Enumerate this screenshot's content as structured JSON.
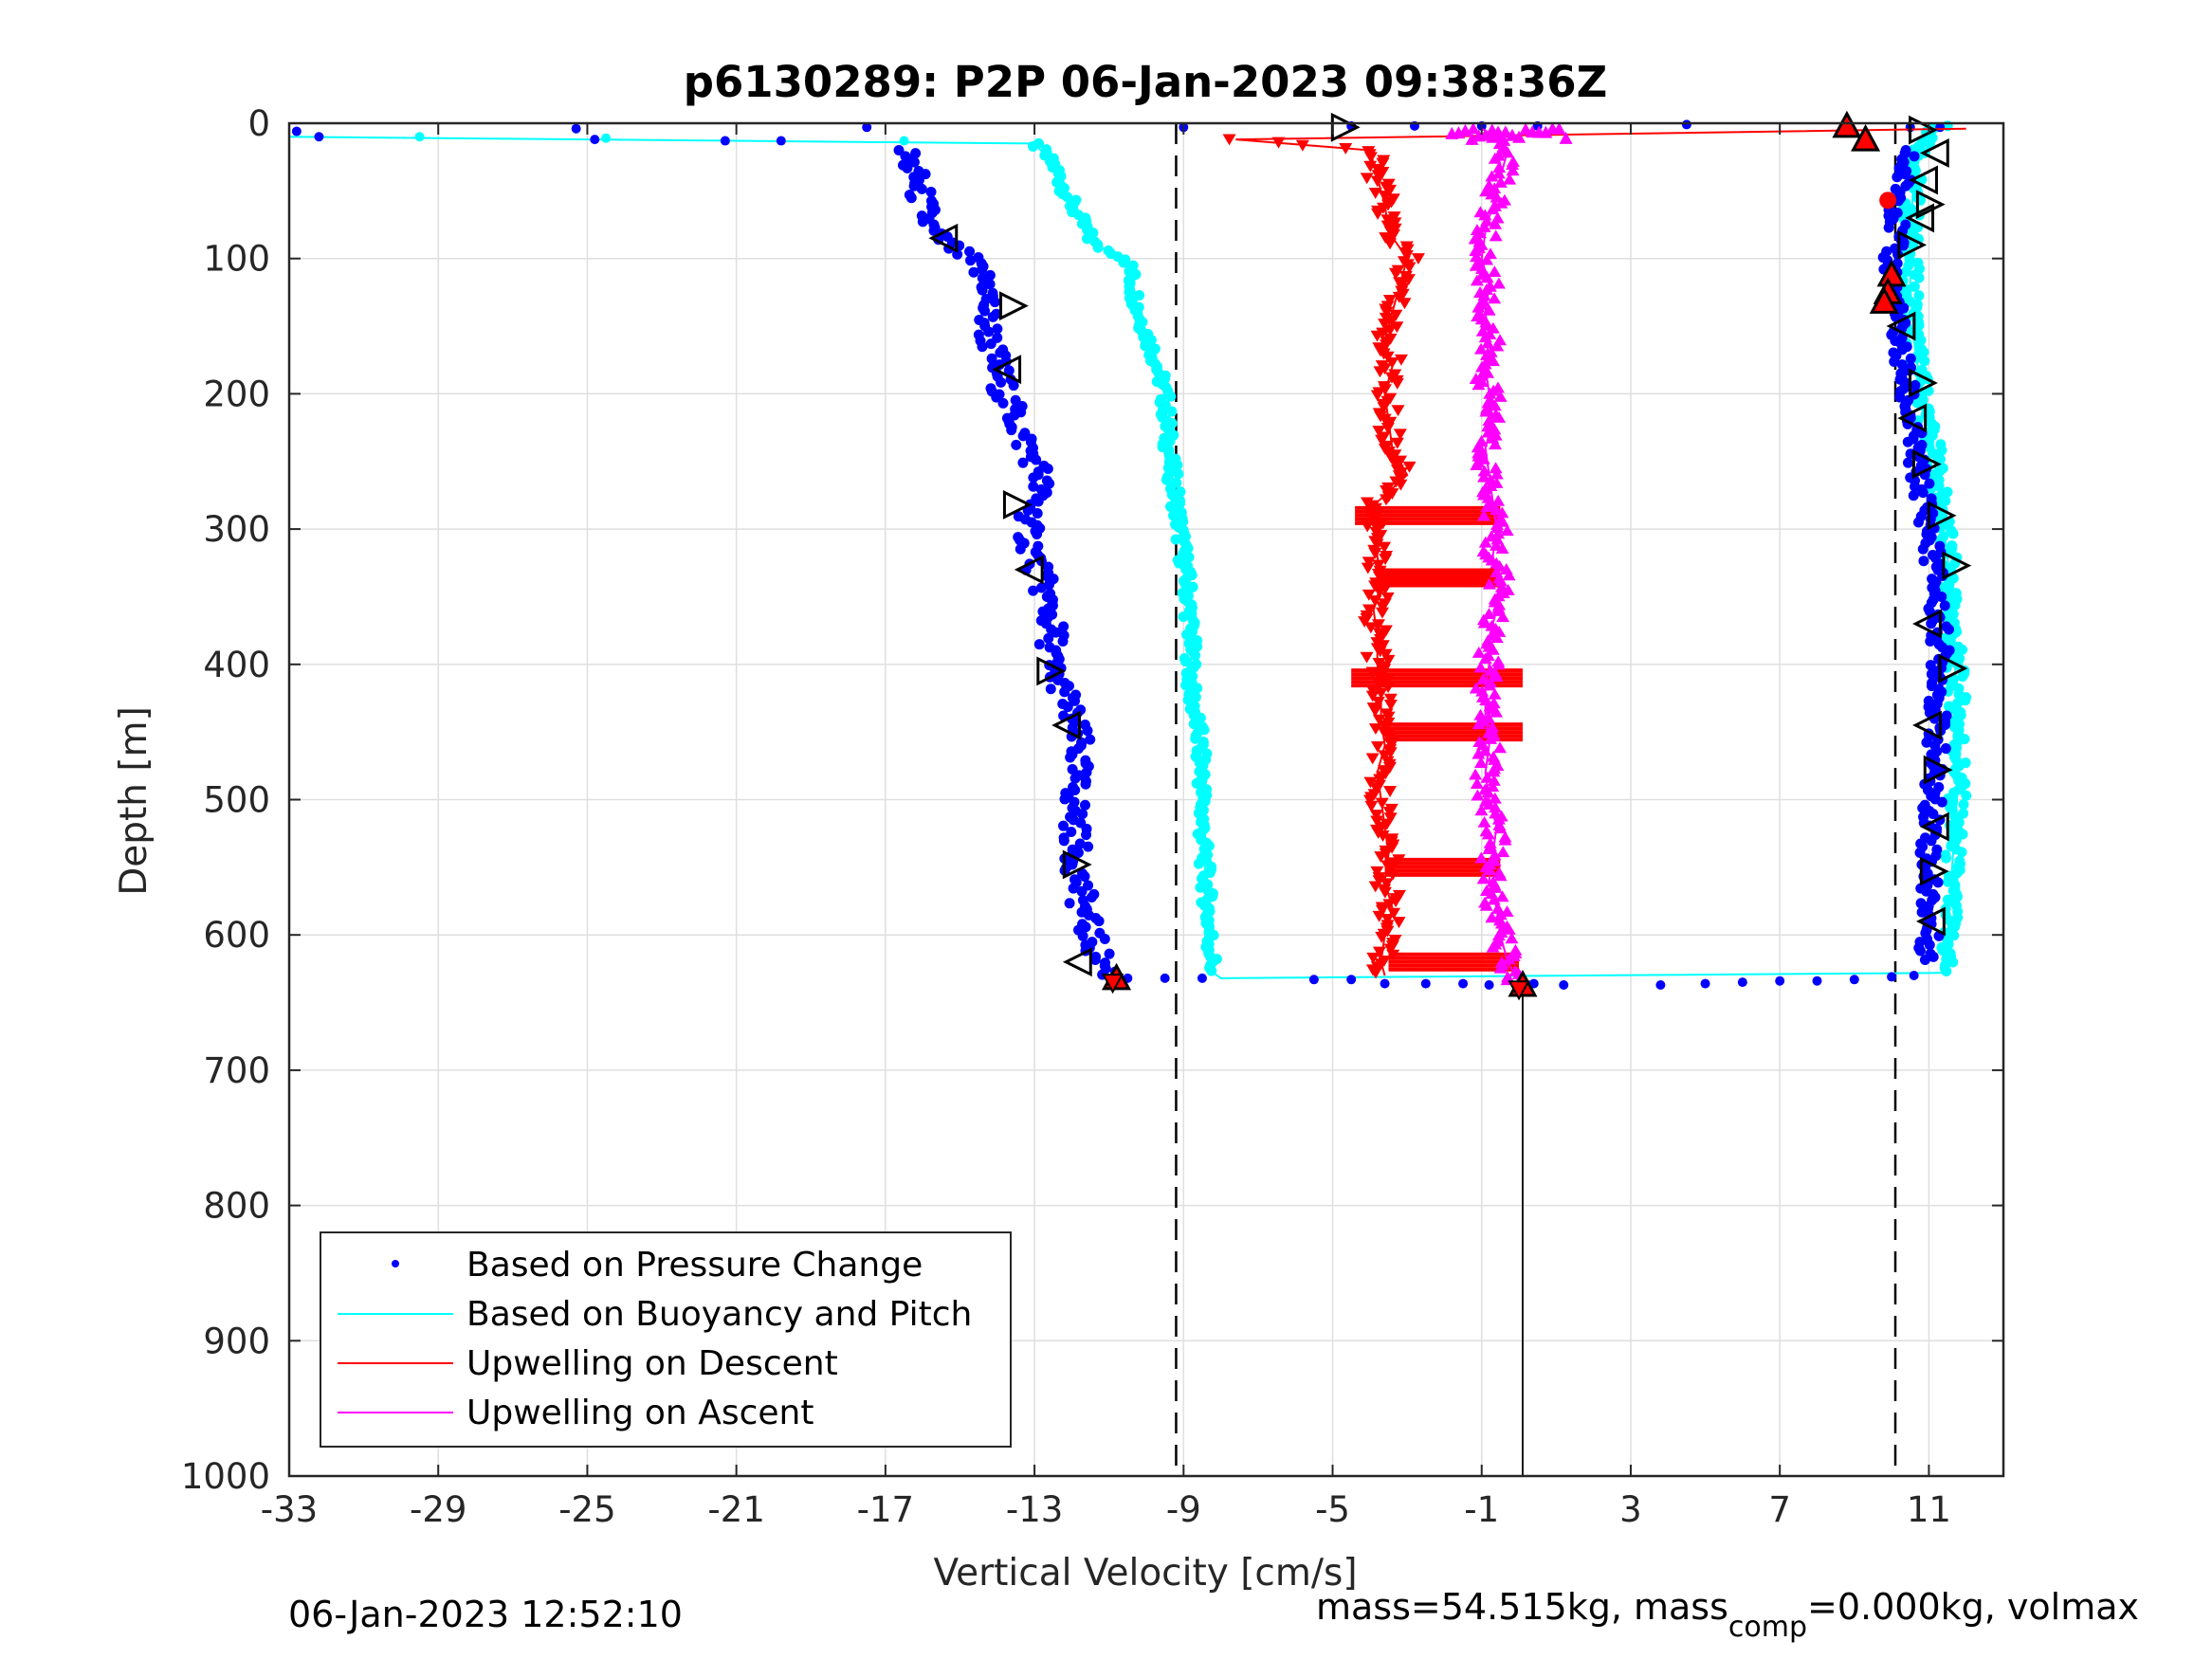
{
  "chart_data": {
    "type": "scatter",
    "title": "p6130289: P2P 06-Jan-2023 09:38:36Z",
    "xlabel": "Vertical Velocity [cm/s]",
    "ylabel": "Depth [m]",
    "xlim": [
      -33,
      13
    ],
    "ylim": [
      0,
      1000
    ],
    "y_reversed": true,
    "grid": true,
    "legend_location": "bottom-left",
    "x_ticks": [
      "-33",
      "-29",
      "-25",
      "-21",
      "-17",
      "-13",
      "-9",
      "-5",
      "-1",
      "3",
      "7",
      "11"
    ],
    "y_ticks": [
      "0",
      "100",
      "200",
      "300",
      "400",
      "500",
      "600",
      "700",
      "800",
      "900",
      "1000"
    ],
    "dashed_reference_lines_x": [
      -9.2,
      10.1
    ],
    "solid_reference_line_x": 0.1,
    "series": [
      {
        "name": "Based on Pressure Change",
        "color": "#0000ff",
        "style": "dots",
        "descent": [
          [
            -16.5,
            20
          ],
          [
            -16.2,
            40
          ],
          [
            -16.0,
            60
          ],
          [
            -15.8,
            80
          ],
          [
            -14.8,
            100
          ],
          [
            -14.2,
            120
          ],
          [
            -14.3,
            140
          ],
          [
            -14.2,
            160
          ],
          [
            -14.0,
            180
          ],
          [
            -13.8,
            200
          ],
          [
            -13.5,
            220
          ],
          [
            -13.2,
            240
          ],
          [
            -12.8,
            260
          ],
          [
            -13.0,
            280
          ],
          [
            -13.2,
            300
          ],
          [
            -13.0,
            320
          ],
          [
            -12.8,
            340
          ],
          [
            -12.6,
            360
          ],
          [
            -12.5,
            380
          ],
          [
            -12.6,
            400
          ],
          [
            -12.2,
            420
          ],
          [
            -12.0,
            440
          ],
          [
            -11.8,
            460
          ],
          [
            -11.9,
            480
          ],
          [
            -11.9,
            500
          ],
          [
            -11.9,
            520
          ],
          [
            -11.9,
            540
          ],
          [
            -11.8,
            560
          ],
          [
            -11.7,
            580
          ],
          [
            -11.5,
            600
          ],
          [
            -11.2,
            620
          ],
          [
            -10.9,
            630
          ]
        ],
        "ascent": [
          [
            10.4,
            20
          ],
          [
            10.3,
            40
          ],
          [
            10.2,
            60
          ],
          [
            10.1,
            80
          ],
          [
            10.0,
            100
          ],
          [
            10.0,
            120
          ],
          [
            10.1,
            140
          ],
          [
            10.2,
            160
          ],
          [
            10.3,
            180
          ],
          [
            10.4,
            200
          ],
          [
            10.5,
            220
          ],
          [
            10.6,
            240
          ],
          [
            10.7,
            260
          ],
          [
            10.9,
            280
          ],
          [
            11.0,
            300
          ],
          [
            11.1,
            320
          ],
          [
            11.2,
            340
          ],
          [
            11.2,
            360
          ],
          [
            11.3,
            380
          ],
          [
            11.3,
            400
          ],
          [
            11.3,
            420
          ],
          [
            11.2,
            440
          ],
          [
            11.2,
            460
          ],
          [
            11.1,
            480
          ],
          [
            11.1,
            500
          ],
          [
            11.1,
            520
          ],
          [
            11.0,
            540
          ],
          [
            11.0,
            560
          ],
          [
            11.0,
            580
          ],
          [
            11.0,
            600
          ],
          [
            11.0,
            620
          ]
        ],
        "surface": [
          [
            -32.8,
            6
          ],
          [
            -32.2,
            10
          ],
          [
            -25.3,
            4
          ],
          [
            -24.8,
            12
          ],
          [
            -21.3,
            13
          ],
          [
            -19.8,
            13
          ],
          [
            -17.5,
            3
          ],
          [
            -9.0,
            3
          ],
          [
            -4.5,
            2
          ],
          [
            -2.8,
            2
          ],
          [
            -1.0,
            2
          ],
          [
            0.5,
            2
          ],
          [
            4.5,
            1
          ],
          [
            10.5,
            3
          ],
          [
            11.3,
            3
          ]
        ],
        "bottom": [
          [
            -10.5,
            632
          ],
          [
            -9.5,
            632
          ],
          [
            -8.5,
            632
          ],
          [
            -5.5,
            633
          ],
          [
            -4.5,
            633
          ],
          [
            -3.6,
            636
          ],
          [
            -2.5,
            636
          ],
          [
            -1.5,
            636
          ],
          [
            -0.8,
            637
          ],
          [
            0.4,
            636
          ],
          [
            1.2,
            637
          ],
          [
            3.8,
            637
          ],
          [
            5.0,
            636
          ],
          [
            6.0,
            635
          ],
          [
            7.0,
            634
          ],
          [
            8.0,
            634
          ],
          [
            9.0,
            633
          ],
          [
            10.0,
            631
          ],
          [
            10.6,
            630
          ]
        ]
      },
      {
        "name": "Based on Buoyancy and Pitch",
        "color": "#00ffff",
        "style": "line+dots",
        "line": [
          [
            -33,
            10
          ],
          [
            -13.0,
            15
          ],
          [
            -12.5,
            30
          ],
          [
            -12.0,
            60
          ],
          [
            -11.4,
            90
          ],
          [
            -10.5,
            100
          ],
          [
            -10.2,
            140
          ],
          [
            -9.8,
            170
          ],
          [
            -9.5,
            200
          ],
          [
            -9.4,
            240
          ],
          [
            -9.2,
            280
          ],
          [
            -9.0,
            320
          ],
          [
            -8.9,
            340
          ],
          [
            -8.8,
            380
          ],
          [
            -8.8,
            420
          ],
          [
            -8.6,
            450
          ],
          [
            -8.5,
            480
          ],
          [
            -8.5,
            520
          ],
          [
            -8.4,
            560
          ],
          [
            -8.3,
            600
          ],
          [
            -8.2,
            628
          ],
          [
            -8.0,
            632
          ],
          [
            11.5,
            628
          ],
          [
            11.5,
            600
          ],
          [
            11.6,
            560
          ],
          [
            11.7,
            520
          ],
          [
            11.8,
            480
          ],
          [
            11.8,
            440
          ],
          [
            11.7,
            400
          ],
          [
            11.6,
            360
          ],
          [
            11.5,
            320
          ],
          [
            11.3,
            280
          ],
          [
            11.1,
            240
          ],
          [
            10.8,
            200
          ],
          [
            10.6,
            160
          ],
          [
            10.5,
            120
          ],
          [
            10.5,
            80
          ],
          [
            10.6,
            40
          ],
          [
            10.8,
            20
          ],
          [
            11.2,
            5
          ],
          [
            11.5,
            2
          ]
        ],
        "surface": [
          [
            -29.5,
            10
          ],
          [
            -24.5,
            11
          ],
          [
            -16.5,
            13
          ]
        ]
      },
      {
        "name": "Upwelling on Descent",
        "color": "#ff0000",
        "style": "line+down-triangles",
        "line": [
          [
            12.0,
            4
          ],
          [
            -7.6,
            12
          ],
          [
            -4.0,
            20
          ],
          [
            -3.8,
            40
          ],
          [
            -3.6,
            60
          ],
          [
            -3.5,
            80
          ],
          [
            -3.0,
            100
          ],
          [
            -3.2,
            120
          ],
          [
            -3.4,
            140
          ],
          [
            -3.6,
            160
          ],
          [
            -3.4,
            180
          ],
          [
            -3.6,
            200
          ],
          [
            -3.5,
            220
          ],
          [
            -3.4,
            240
          ],
          [
            -3.0,
            260
          ],
          [
            -3.8,
            280
          ],
          [
            -3.9,
            300
          ],
          [
            -3.8,
            320
          ],
          [
            -3.7,
            340
          ],
          [
            -3.9,
            360
          ],
          [
            -3.8,
            380
          ],
          [
            -3.8,
            400
          ],
          [
            -3.7,
            420
          ],
          [
            -3.7,
            440
          ],
          [
            -3.6,
            460
          ],
          [
            -3.8,
            480
          ],
          [
            -3.7,
            500
          ],
          [
            -3.6,
            520
          ],
          [
            -3.5,
            540
          ],
          [
            -3.6,
            560
          ],
          [
            -3.4,
            580
          ],
          [
            -3.6,
            600
          ],
          [
            -3.7,
            620
          ],
          [
            -3.6,
            630
          ]
        ],
        "bars": [
          [
            -4.4,
            -0.5,
            290
          ],
          [
            -3.8,
            -0.5,
            336
          ],
          [
            -4.5,
            0.1,
            410
          ],
          [
            -3.6,
            0.1,
            450
          ],
          [
            -3.6,
            -0.5,
            550
          ],
          [
            -3.5,
            0.0,
            620
          ]
        ]
      },
      {
        "name": "Upwelling on Ascent",
        "color": "#ff00ff",
        "style": "line+up-triangles",
        "line": [
          [
            -1.0,
            4
          ],
          [
            -0.6,
            10
          ],
          [
            -0.3,
            20
          ],
          [
            -0.5,
            40
          ],
          [
            -0.7,
            60
          ],
          [
            -0.9,
            80
          ],
          [
            -1.0,
            100
          ],
          [
            -0.8,
            120
          ],
          [
            -0.9,
            140
          ],
          [
            -0.8,
            160
          ],
          [
            -0.9,
            180
          ],
          [
            -0.8,
            200
          ],
          [
            -0.7,
            220
          ],
          [
            -0.9,
            240
          ],
          [
            -0.8,
            260
          ],
          [
            -0.7,
            280
          ],
          [
            -0.6,
            300
          ],
          [
            -0.7,
            320
          ],
          [
            -0.5,
            340
          ],
          [
            -0.6,
            360
          ],
          [
            -0.8,
            380
          ],
          [
            -0.8,
            400
          ],
          [
            -0.9,
            420
          ],
          [
            -0.9,
            440
          ],
          [
            -0.8,
            460
          ],
          [
            -0.9,
            480
          ],
          [
            -0.8,
            500
          ],
          [
            -0.6,
            520
          ],
          [
            -0.7,
            540
          ],
          [
            -0.8,
            560
          ],
          [
            -0.6,
            580
          ],
          [
            -0.5,
            600
          ],
          [
            -0.3,
            620
          ],
          [
            0.0,
            635
          ]
        ]
      }
    ],
    "markers": {
      "open_left": [
        [
          -15.4,
          85
        ],
        [
          -13.7,
          182
        ],
        [
          -13.1,
          330
        ],
        [
          -12.1,
          445
        ],
        [
          -11.8,
          620
        ],
        [
          11.2,
          22
        ],
        [
          10.9,
          42
        ],
        [
          10.8,
          70
        ],
        [
          10.3,
          150
        ],
        [
          10.6,
          218
        ],
        [
          11.0,
          370
        ],
        [
          11.0,
          445
        ],
        [
          11.2,
          520
        ],
        [
          11.1,
          590
        ]
      ],
      "open_right": [
        [
          -4.7,
          3
        ],
        [
          -13.6,
          135
        ],
        [
          -13.5,
          282
        ],
        [
          -12.6,
          405
        ],
        [
          -11.9,
          548
        ],
        [
          10.8,
          5
        ],
        [
          11.0,
          60
        ],
        [
          10.5,
          90
        ],
        [
          10.8,
          192
        ],
        [
          10.9,
          252
        ],
        [
          11.3,
          290
        ],
        [
          11.7,
          327
        ],
        [
          11.6,
          403
        ],
        [
          11.2,
          478
        ],
        [
          11.1,
          553
        ]
      ],
      "filled_red_up": [
        [
          8.8,
          2
        ],
        [
          9.3,
          12
        ],
        [
          10.0,
          112
        ],
        [
          9.9,
          125
        ],
        [
          9.8,
          132
        ],
        [
          -10.8,
          632
        ],
        [
          0.1,
          637
        ]
      ],
      "filled_red_down": [
        [
          -10.9,
          635
        ],
        [
          0.0,
          640
        ]
      ],
      "red_dot": [
        [
          9.9,
          57
        ]
      ]
    },
    "legend": [
      "Based on Pressure Change",
      "Based on Buoyancy and Pitch",
      "Upwelling on Descent",
      "Upwelling on Ascent"
    ]
  },
  "footer": {
    "timestamp": "06-Jan-2023 12:52:10",
    "mass_text_a": "mass=54.515kg, mass",
    "mass_sub": "comp",
    "mass_text_b": "=0.000kg, volmax"
  }
}
